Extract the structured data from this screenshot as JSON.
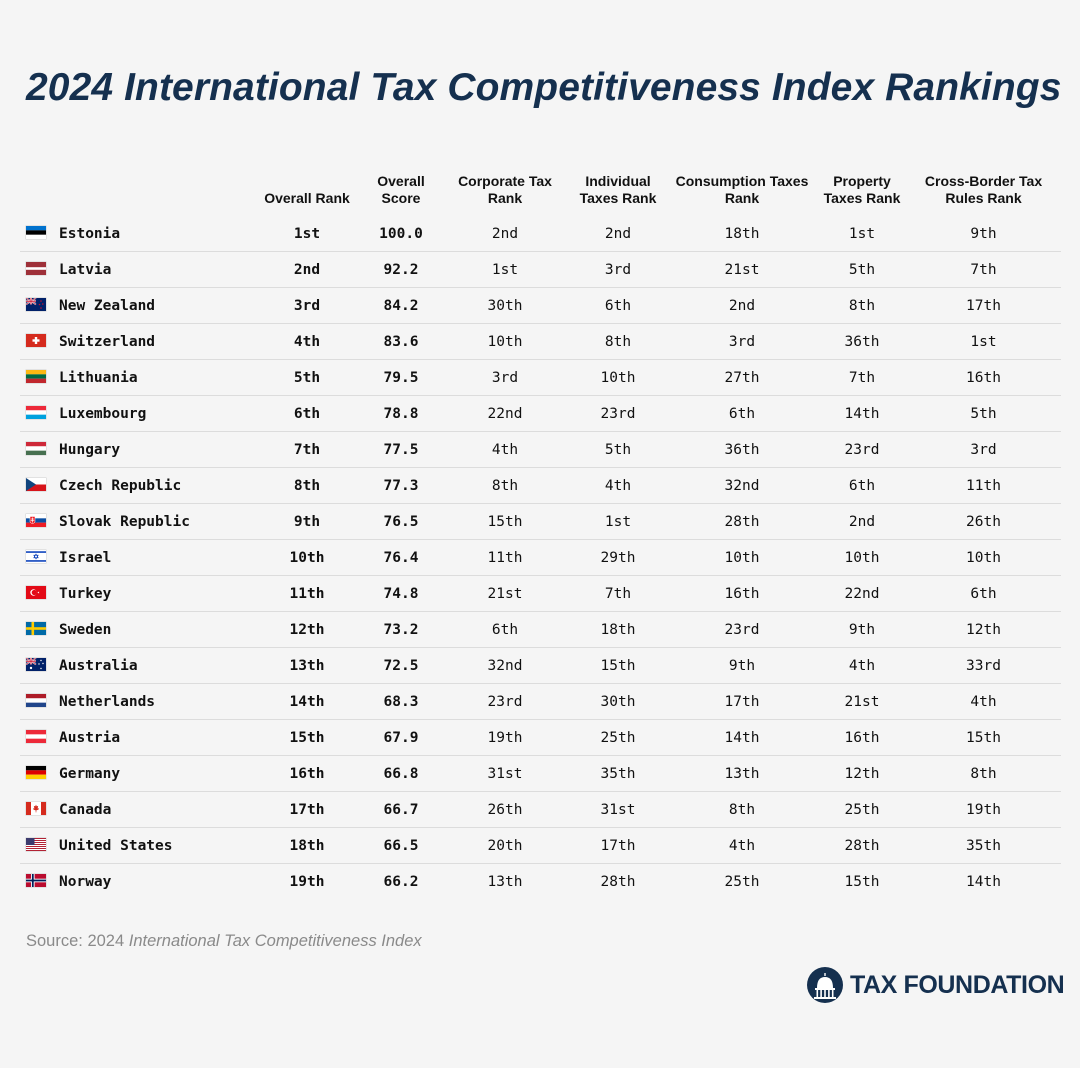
{
  "title": "2024 International Tax Competitiveness Index Rankings",
  "table": {
    "headers": {
      "country": "",
      "overall_rank": "Overall Rank",
      "overall_score": "Overall Score",
      "corporate": "Corporate Tax Rank",
      "individual": "Individual Taxes Rank",
      "consumption": "Consumption Taxes Rank",
      "property": "Property Taxes Rank",
      "crossborder": "Cross-Border Tax Rules Rank"
    },
    "rows": [
      {
        "flag": "estonia-flag-icon",
        "country": "Estonia",
        "overall_rank": "1st",
        "overall_score": "100.0",
        "corporate": "2nd",
        "individual": "2nd",
        "consumption": "18th",
        "property": "1st",
        "crossborder": "9th"
      },
      {
        "flag": "latvia-flag-icon",
        "country": "Latvia",
        "overall_rank": "2nd",
        "overall_score": "92.2",
        "corporate": "1st",
        "individual": "3rd",
        "consumption": "21st",
        "property": "5th",
        "crossborder": "7th"
      },
      {
        "flag": "new-zealand-flag-icon",
        "country": "New Zealand",
        "overall_rank": "3rd",
        "overall_score": "84.2",
        "corporate": "30th",
        "individual": "6th",
        "consumption": "2nd",
        "property": "8th",
        "crossborder": "17th"
      },
      {
        "flag": "switzerland-flag-icon",
        "country": "Switzerland",
        "overall_rank": "4th",
        "overall_score": "83.6",
        "corporate": "10th",
        "individual": "8th",
        "consumption": "3rd",
        "property": "36th",
        "crossborder": "1st"
      },
      {
        "flag": "lithuania-flag-icon",
        "country": "Lithuania",
        "overall_rank": "5th",
        "overall_score": "79.5",
        "corporate": "3rd",
        "individual": "10th",
        "consumption": "27th",
        "property": "7th",
        "crossborder": "16th"
      },
      {
        "flag": "luxembourg-flag-icon",
        "country": "Luxembourg",
        "overall_rank": "6th",
        "overall_score": "78.8",
        "corporate": "22nd",
        "individual": "23rd",
        "consumption": "6th",
        "property": "14th",
        "crossborder": "5th"
      },
      {
        "flag": "hungary-flag-icon",
        "country": "Hungary",
        "overall_rank": "7th",
        "overall_score": "77.5",
        "corporate": "4th",
        "individual": "5th",
        "consumption": "36th",
        "property": "23rd",
        "crossborder": "3rd"
      },
      {
        "flag": "czech-republic-flag-icon",
        "country": "Czech Republic",
        "overall_rank": "8th",
        "overall_score": "77.3",
        "corporate": "8th",
        "individual": "4th",
        "consumption": "32nd",
        "property": "6th",
        "crossborder": "11th"
      },
      {
        "flag": "slovak-republic-flag-icon",
        "country": "Slovak Republic",
        "overall_rank": "9th",
        "overall_score": "76.5",
        "corporate": "15th",
        "individual": "1st",
        "consumption": "28th",
        "property": "2nd",
        "crossborder": "26th"
      },
      {
        "flag": "israel-flag-icon",
        "country": "Israel",
        "overall_rank": "10th",
        "overall_score": "76.4",
        "corporate": "11th",
        "individual": "29th",
        "consumption": "10th",
        "property": "10th",
        "crossborder": "10th"
      },
      {
        "flag": "turkey-flag-icon",
        "country": "Turkey",
        "overall_rank": "11th",
        "overall_score": "74.8",
        "corporate": "21st",
        "individual": "7th",
        "consumption": "16th",
        "property": "22nd",
        "crossborder": "6th"
      },
      {
        "flag": "sweden-flag-icon",
        "country": "Sweden",
        "overall_rank": "12th",
        "overall_score": "73.2",
        "corporate": "6th",
        "individual": "18th",
        "consumption": "23rd",
        "property": "9th",
        "crossborder": "12th"
      },
      {
        "flag": "australia-flag-icon",
        "country": "Australia",
        "overall_rank": "13th",
        "overall_score": "72.5",
        "corporate": "32nd",
        "individual": "15th",
        "consumption": "9th",
        "property": "4th",
        "crossborder": "33rd"
      },
      {
        "flag": "netherlands-flag-icon",
        "country": "Netherlands",
        "overall_rank": "14th",
        "overall_score": "68.3",
        "corporate": "23rd",
        "individual": "30th",
        "consumption": "17th",
        "property": "21st",
        "crossborder": "4th"
      },
      {
        "flag": "austria-flag-icon",
        "country": "Austria",
        "overall_rank": "15th",
        "overall_score": "67.9",
        "corporate": "19th",
        "individual": "25th",
        "consumption": "14th",
        "property": "16th",
        "crossborder": "15th"
      },
      {
        "flag": "germany-flag-icon",
        "country": "Germany",
        "overall_rank": "16th",
        "overall_score": "66.8",
        "corporate": "31st",
        "individual": "35th",
        "consumption": "13th",
        "property": "12th",
        "crossborder": "8th"
      },
      {
        "flag": "canada-flag-icon",
        "country": "Canada",
        "overall_rank": "17th",
        "overall_score": "66.7",
        "corporate": "26th",
        "individual": "31st",
        "consumption": "8th",
        "property": "25th",
        "crossborder": "19th"
      },
      {
        "flag": "united-states-flag-icon",
        "country": "United States",
        "overall_rank": "18th",
        "overall_score": "66.5",
        "corporate": "20th",
        "individual": "17th",
        "consumption": "4th",
        "property": "28th",
        "crossborder": "35th"
      },
      {
        "flag": "norway-flag-icon",
        "country": "Norway",
        "overall_rank": "19th",
        "overall_score": "66.2",
        "corporate": "13th",
        "individual": "28th",
        "consumption": "25th",
        "property": "15th",
        "crossborder": "14th"
      }
    ]
  },
  "source": {
    "prefix": "Source: 2024 ",
    "italic": "International Tax Competitiveness Index"
  },
  "logo": {
    "icon": "capitol-dome-icon",
    "text": "TAX FOUNDATION",
    "color": "#15304f"
  },
  "colors": {
    "title": "#15304f",
    "background": "#f5f5f5",
    "source_text": "#8a8a8a",
    "row_divider": "#dcdcdc"
  }
}
